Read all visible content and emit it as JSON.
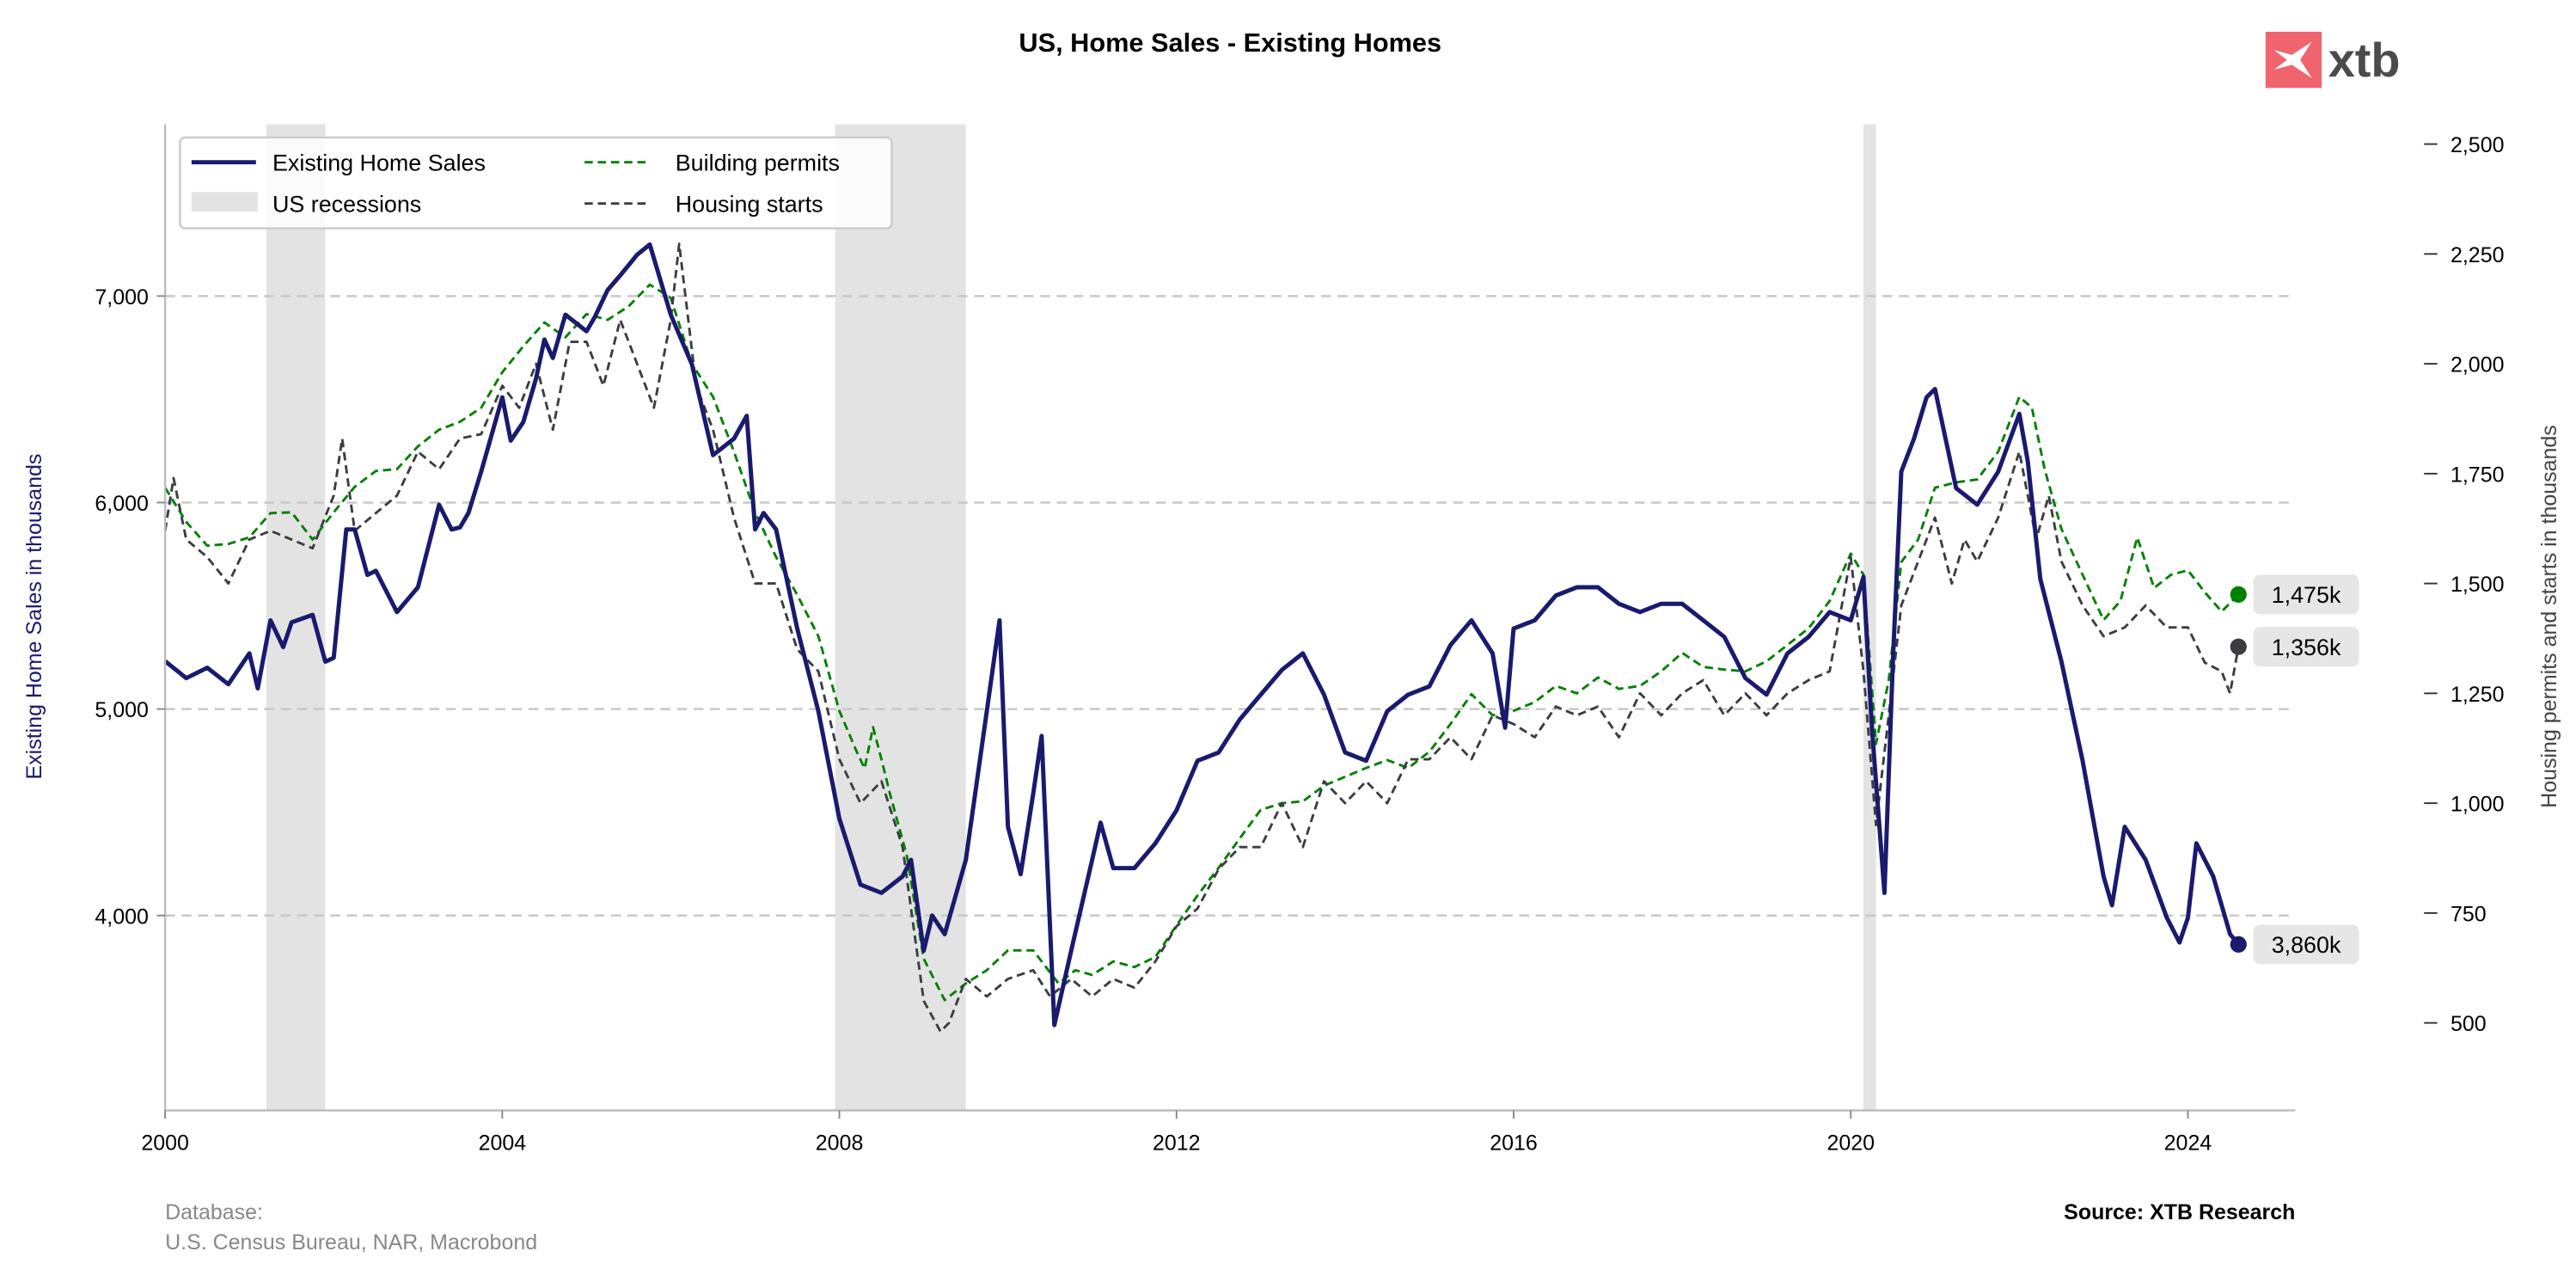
{
  "header": {
    "title": "US, Home Sales - Existing Homes",
    "logo_text": "xtb"
  },
  "footer": {
    "database_label": "Database:",
    "database_sources": "U.S. Census Bureau, NAR, Macrobond",
    "source": "Source: XTB Research"
  },
  "colors": {
    "sales": "#1a1a6e",
    "permits": "#008000",
    "starts": "#3a3d42",
    "recession": "#e3e3e3",
    "logo": "#f0646e"
  },
  "chart_data": {
    "type": "line",
    "title": "US, Home Sales - Existing Homes",
    "ylabel_left": "Existing Home Sales in thousands",
    "ylabel_right": "Housing permits and starts in thousands",
    "xlim": [
      2000,
      2025.3
    ],
    "ylim_left": [
      3056,
      7830
    ],
    "ylim_right": [
      300,
      2545
    ],
    "grid": "horizontal dashed at left ticks",
    "x_ticks": [
      2000,
      2004,
      2008,
      2012,
      2016,
      2020,
      2024
    ],
    "x_tick_labels": [
      "2000",
      "2004",
      "2008",
      "2012",
      "2016",
      "2020",
      "2024"
    ],
    "left_ticks": [
      4000,
      5000,
      6000,
      7000
    ],
    "left_tick_labels": [
      "4,000",
      "5,000",
      "6,000",
      "7,000"
    ],
    "right_ticks": [
      500,
      750,
      1000,
      1250,
      1500,
      1750,
      2000,
      2250,
      2500
    ],
    "right_tick_labels": [
      "500",
      "750",
      "1,000",
      "1,250",
      "1,500",
      "1,750",
      "2,000",
      "2,250",
      "2,500"
    ],
    "legend": {
      "placement": "top-left",
      "entries": [
        "Existing Home Sales",
        "US recessions",
        "Building permits",
        "Housing starts"
      ]
    },
    "recessions": [
      [
        2001.2,
        2001.9
      ],
      [
        2007.95,
        2009.5
      ],
      [
        2020.15,
        2020.3
      ]
    ],
    "series": [
      {
        "name": "Existing Home Sales",
        "axis": "left",
        "style": "solid",
        "end_label": "3,860k",
        "x": [
          2000,
          2000.25,
          2000.5,
          2000.75,
          2001,
          2001.1,
          2001.25,
          2001.4,
          2001.5,
          2001.75,
          2001.9,
          2002,
          2002.15,
          2002.25,
          2002.4,
          2002.5,
          2002.75,
          2003,
          2003.25,
          2003.4,
          2003.5,
          2003.6,
          2003.75,
          2004,
          2004.1,
          2004.25,
          2004.4,
          2004.5,
          2004.6,
          2004.75,
          2005,
          2005.1,
          2005.25,
          2005.4,
          2005.5,
          2005.6,
          2005.75,
          2006,
          2006.25,
          2006.5,
          2006.75,
          2006.9,
          2007,
          2007.1,
          2007.25,
          2007.5,
          2007.75,
          2008,
          2008.25,
          2008.5,
          2008.75,
          2008.85,
          2009,
          2009.1,
          2009.25,
          2009.5,
          2009.75,
          2009.9,
          2010,
          2010.15,
          2010.3,
          2010.4,
          2010.55,
          2010.75,
          2011,
          2011.1,
          2011.25,
          2011.5,
          2011.75,
          2012,
          2012.25,
          2012.5,
          2012.75,
          2013,
          2013.25,
          2013.5,
          2013.75,
          2014,
          2014.25,
          2014.5,
          2014.75,
          2015,
          2015.25,
          2015.5,
          2015.75,
          2015.9,
          2016,
          2016.25,
          2016.5,
          2016.75,
          2017,
          2017.25,
          2017.5,
          2017.75,
          2018,
          2018.25,
          2018.5,
          2018.75,
          2019,
          2019.25,
          2019.5,
          2019.75,
          2020,
          2020.15,
          2020.25,
          2020.4,
          2020.5,
          2020.6,
          2020.75,
          2020.9,
          2021,
          2021.25,
          2021.5,
          2021.75,
          2022,
          2022.1,
          2022.25,
          2022.5,
          2022.75,
          2023,
          2023.1,
          2023.25,
          2023.5,
          2023.75,
          2023.9,
          2024,
          2024.1,
          2024.3,
          2024.5,
          2024.6
        ],
        "y": [
          5232,
          5150,
          5200,
          5120,
          5270,
          5100,
          5430,
          5300,
          5420,
          5456,
          5230,
          5248,
          5870,
          5870,
          5650,
          5670,
          5470,
          5590,
          5990,
          5870,
          5880,
          5950,
          6150,
          6510,
          6300,
          6390,
          6600,
          6790,
          6700,
          6910,
          6830,
          6900,
          7030,
          7100,
          7150,
          7200,
          7250,
          6910,
          6670,
          6230,
          6310,
          6420,
          5870,
          5950,
          5870,
          5390,
          4990,
          4470,
          4150,
          4110,
          4190,
          4270,
          3830,
          4000,
          3910,
          4270,
          4990,
          5430,
          4430,
          4200,
          4590,
          4870,
          3470,
          3830,
          4270,
          4450,
          4230,
          4230,
          4350,
          4510,
          4750,
          4790,
          4950,
          5070,
          5190,
          5270,
          5070,
          4790,
          4750,
          4990,
          5070,
          5110,
          5310,
          5430,
          5270,
          4910,
          5390,
          5430,
          5550,
          5590,
          5590,
          5510,
          5470,
          5510,
          5510,
          5430,
          5350,
          5150,
          5070,
          5270,
          5350,
          5470,
          5430,
          5640,
          4910,
          4110,
          5230,
          6150,
          6310,
          6510,
          6550,
          6070,
          5990,
          6150,
          6430,
          6200,
          5630,
          5230,
          4750,
          4190,
          4050,
          4430,
          4270,
          3990,
          3870,
          3990,
          4350,
          4190,
          3910,
          3860
        ]
      },
      {
        "name": "Building permits",
        "axis": "right",
        "style": "dashed",
        "end_label": "1,475k",
        "x": [
          2000,
          2000.25,
          2000.5,
          2000.75,
          2001,
          2001.25,
          2001.5,
          2001.75,
          2002,
          2002.25,
          2002.5,
          2002.75,
          2003,
          2003.25,
          2003.5,
          2003.75,
          2004,
          2004.25,
          2004.5,
          2004.75,
          2005,
          2005.25,
          2005.5,
          2005.75,
          2006,
          2006.25,
          2006.5,
          2006.75,
          2007,
          2007.25,
          2007.5,
          2007.75,
          2008,
          2008.2,
          2008.3,
          2008.4,
          2008.5,
          2008.6,
          2008.8,
          2009,
          2009.25,
          2009.5,
          2009.75,
          2010,
          2010.3,
          2010.6,
          2010.8,
          2011,
          2011.25,
          2011.5,
          2011.75,
          2012,
          2012.25,
          2012.5,
          2012.75,
          2013,
          2013.25,
          2013.5,
          2013.75,
          2014,
          2014.25,
          2014.5,
          2014.75,
          2015,
          2015.25,
          2015.5,
          2015.75,
          2016,
          2016.25,
          2016.5,
          2016.75,
          2017,
          2017.25,
          2017.5,
          2017.75,
          2018,
          2018.25,
          2018.5,
          2018.75,
          2019,
          2019.25,
          2019.5,
          2019.75,
          2020,
          2020.15,
          2020.3,
          2020.45,
          2020.6,
          2020.8,
          2021,
          2021.25,
          2021.5,
          2021.75,
          2022,
          2022.15,
          2022.3,
          2022.5,
          2022.75,
          2023,
          2023.2,
          2023.4,
          2023.6,
          2023.8,
          2024,
          2024.2,
          2024.4,
          2024.6
        ],
        "y": [
          1718,
          1640,
          1586,
          1590,
          1605,
          1660,
          1662,
          1600,
          1662,
          1720,
          1756,
          1760,
          1812,
          1850,
          1868,
          1900,
          1981,
          2040,
          2094,
          2060,
          2113,
          2100,
          2131,
          2180,
          2150,
          2000,
          1925,
          1800,
          1662,
          1560,
          1474,
          1380,
          1210,
          1120,
          1079,
          1173,
          1100,
          1022,
          880,
          646,
          552,
          590,
          620,
          665,
          665,
          590,
          620,
          609,
          640,
          627,
          650,
          722,
          790,
          853,
          920,
          985,
          1000,
          1004,
          1040,
          1060,
          1080,
          1098,
          1080,
          1117,
          1180,
          1248,
          1200,
          1210,
          1230,
          1267,
          1250,
          1286,
          1260,
          1267,
          1300,
          1342,
          1310,
          1304,
          1300,
          1323,
          1360,
          1398,
          1460,
          1568,
          1520,
          1135,
          1280,
          1549,
          1600,
          1718,
          1730,
          1737,
          1800,
          1925,
          1900,
          1760,
          1624,
          1520,
          1417,
          1460,
          1605,
          1490,
          1520,
          1530,
          1480,
          1436,
          1475
        ]
      },
      {
        "name": "Housing starts",
        "axis": "right",
        "style": "dashed",
        "end_label": "1,356k",
        "x": [
          2000,
          2000.1,
          2000.25,
          2000.5,
          2000.75,
          2001,
          2001.25,
          2001.5,
          2001.75,
          2002,
          2002.1,
          2002.25,
          2002.5,
          2002.75,
          2003,
          2003.25,
          2003.5,
          2003.75,
          2004,
          2004.2,
          2004.4,
          2004.6,
          2004.8,
          2005,
          2005.2,
          2005.4,
          2005.6,
          2005.8,
          2006,
          2006.1,
          2006.3,
          2006.5,
          2006.75,
          2007,
          2007.25,
          2007.5,
          2007.75,
          2008,
          2008.25,
          2008.5,
          2008.75,
          2009,
          2009.2,
          2009.3,
          2009.5,
          2009.75,
          2010,
          2010.3,
          2010.5,
          2010.75,
          2011,
          2011.25,
          2011.5,
          2011.75,
          2012,
          2012.25,
          2012.5,
          2012.75,
          2013,
          2013.25,
          2013.5,
          2013.75,
          2014,
          2014.25,
          2014.5,
          2014.75,
          2015,
          2015.25,
          2015.5,
          2015.75,
          2016,
          2016.25,
          2016.5,
          2016.75,
          2017,
          2017.25,
          2017.5,
          2017.75,
          2018,
          2018.25,
          2018.5,
          2018.75,
          2019,
          2019.25,
          2019.5,
          2019.75,
          2020,
          2020.15,
          2020.3,
          2020.45,
          2020.6,
          2020.8,
          2021,
          2021.2,
          2021.35,
          2021.5,
          2021.75,
          2022,
          2022.2,
          2022.35,
          2022.5,
          2022.75,
          2023,
          2023.25,
          2023.5,
          2023.75,
          2024,
          2024.2,
          2024.4,
          2024.5,
          2024.6
        ],
        "y": [
          1620,
          1740,
          1600,
          1560,
          1500,
          1600,
          1620,
          1600,
          1580,
          1700,
          1830,
          1620,
          1660,
          1700,
          1800,
          1760,
          1830,
          1840,
          1950,
          1900,
          2000,
          1850,
          2050,
          2050,
          1950,
          2100,
          2000,
          1900,
          2100,
          2273,
          1950,
          1850,
          1650,
          1500,
          1500,
          1350,
          1300,
          1100,
          1000,
          1050,
          900,
          550,
          480,
          500,
          600,
          560,
          600,
          620,
          560,
          600,
          560,
          600,
          580,
          640,
          720,
          760,
          850,
          900,
          900,
          1000,
          900,
          1050,
          1000,
          1050,
          1000,
          1100,
          1100,
          1150,
          1100,
          1200,
          1180,
          1150,
          1220,
          1200,
          1220,
          1150,
          1250,
          1200,
          1250,
          1280,
          1200,
          1250,
          1200,
          1250,
          1280,
          1300,
          1560,
          1300,
          950,
          1200,
          1450,
          1550,
          1650,
          1500,
          1600,
          1550,
          1650,
          1800,
          1600,
          1700,
          1550,
          1450,
          1380,
          1400,
          1450,
          1400,
          1400,
          1320,
          1300,
          1250,
          1356
        ]
      }
    ]
  }
}
